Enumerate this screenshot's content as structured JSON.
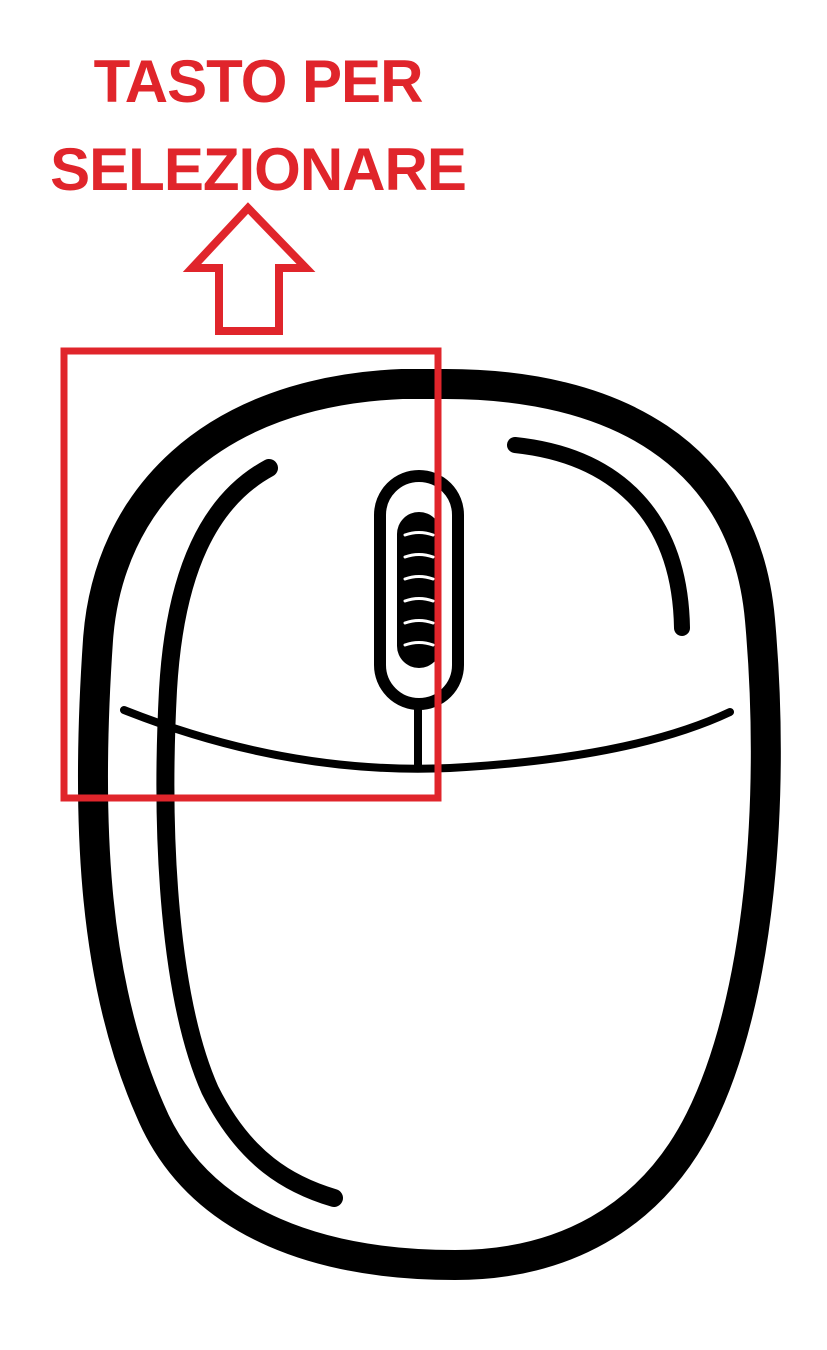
{
  "annotation": {
    "caption_lines": [
      "TASTO PER",
      "SELEZIONARE"
    ],
    "color": "#e0252b"
  },
  "figure": {
    "subject": "computer-mouse",
    "highlighted_part": "left-button",
    "outline_color": "#000000",
    "background_color": "#ffffff"
  }
}
